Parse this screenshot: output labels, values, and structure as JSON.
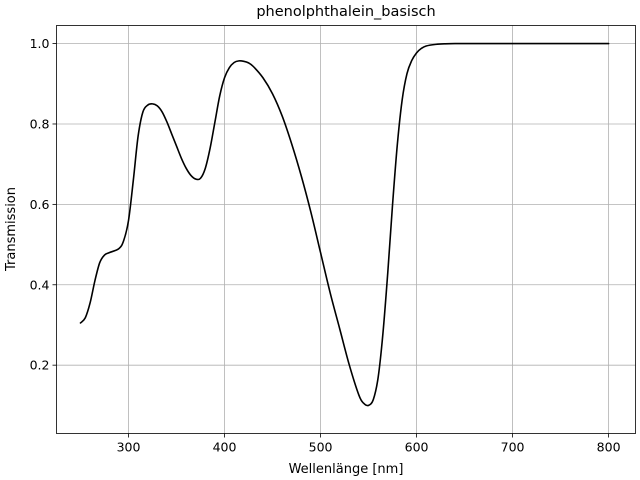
{
  "chart_data": {
    "type": "line",
    "title": "phenolphthalein_basisch",
    "xlabel": "Wellenlänge [nm]",
    "ylabel": "Transmission",
    "xlim": [
      225,
      828
    ],
    "ylim": [
      0.03,
      1.045
    ],
    "xticks": [
      300,
      400,
      500,
      600,
      700,
      800
    ],
    "yticks": [
      0.2,
      0.4,
      0.6,
      0.8,
      1.0
    ],
    "xtick_labels": [
      "300",
      "400",
      "500",
      "600",
      "700",
      "800"
    ],
    "ytick_labels": [
      "0.2",
      "0.4",
      "0.6",
      "0.8",
      "1.0"
    ],
    "grid": true,
    "series": [
      {
        "color": "#000000",
        "x": [
          250,
          255,
          260,
          265,
          270,
          275,
          280,
          290,
          295,
          300,
          305,
          310,
          315,
          320,
          325,
          330,
          335,
          340,
          345,
          350,
          355,
          360,
          365,
          370,
          375,
          380,
          385,
          390,
          395,
          400,
          405,
          410,
          415,
          420,
          425,
          430,
          440,
          450,
          460,
          470,
          480,
          490,
          500,
          510,
          520,
          530,
          540,
          545,
          550,
          555,
          560,
          565,
          570,
          575,
          580,
          585,
          590,
          595,
          600,
          605,
          610,
          620,
          630,
          640,
          660,
          700,
          750,
          800
        ],
        "y": [
          0.305,
          0.318,
          0.355,
          0.41,
          0.455,
          0.474,
          0.48,
          0.49,
          0.51,
          0.56,
          0.66,
          0.77,
          0.83,
          0.847,
          0.85,
          0.845,
          0.83,
          0.805,
          0.775,
          0.745,
          0.715,
          0.69,
          0.672,
          0.663,
          0.665,
          0.69,
          0.74,
          0.805,
          0.87,
          0.915,
          0.94,
          0.953,
          0.957,
          0.956,
          0.952,
          0.943,
          0.915,
          0.875,
          0.82,
          0.75,
          0.67,
          0.58,
          0.48,
          0.38,
          0.29,
          0.2,
          0.125,
          0.105,
          0.1,
          0.115,
          0.17,
          0.28,
          0.43,
          0.6,
          0.75,
          0.86,
          0.925,
          0.958,
          0.977,
          0.988,
          0.994,
          0.998,
          0.9995,
          1.0,
          1.0,
          1.0,
          1.0,
          1.0
        ]
      }
    ]
  }
}
